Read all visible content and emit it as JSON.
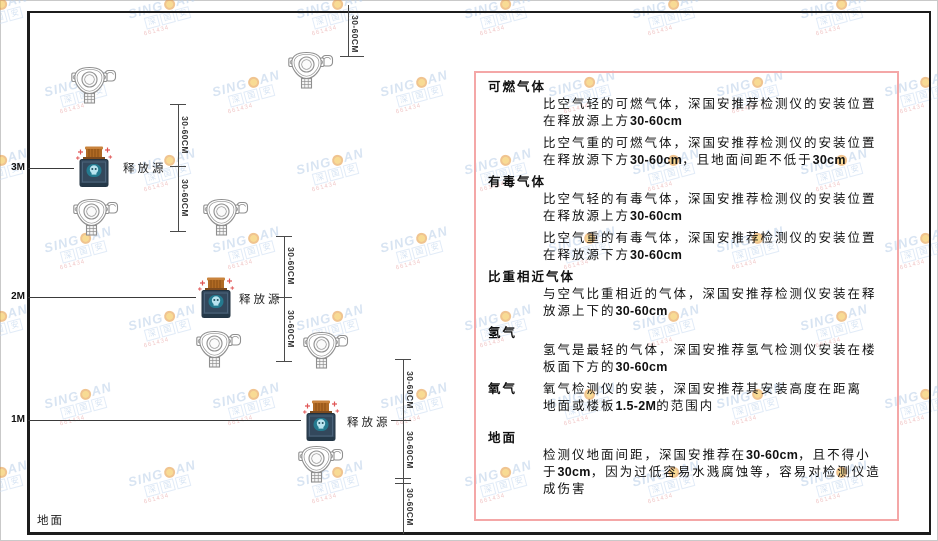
{
  "diagram": {
    "axis_labels": {
      "m3": "3M",
      "m2": "2M",
      "m1": "1M",
      "ground": "地面"
    },
    "release_source_label": "释放源",
    "dimension_label": "30-60CM"
  },
  "panel": {
    "border_color": "#f4a7a7",
    "sections": [
      {
        "heading": "可燃气体",
        "paragraphs": [
          "比空气轻的可燃气体，深国安推荐检测仪的安装位置在释放源上方30-60cm",
          "比空气重的可燃气体，深国安推荐检测仪的安装位置在释放源下方30-60cm，且地面间距不低于30cm"
        ]
      },
      {
        "heading": "有毒气体",
        "paragraphs": [
          "比空气轻的有毒气体，深国安推荐检测仪的安装位置在释放源上方30-60cm",
          "比空气重的有毒气体，深国安推荐检测仪的安装位置在释放源下方30-60cm"
        ]
      },
      {
        "heading": "比重相近气体",
        "paragraphs": [
          "与空气比重相近的气体，深国安推荐检测仪安装在释放源上下的30-60cm"
        ]
      },
      {
        "heading": "氢气",
        "paragraphs": [
          "氢气是最轻的气体，深国安推荐氢气检测仪安装在楼板面下方的30-60cm"
        ]
      },
      {
        "heading": "氧气",
        "inline": true,
        "paragraphs": [
          "氧气检测仪的安装，深国安推荐其安装高度在距离地面或楼板1.5-2M的范围内"
        ]
      },
      {
        "heading": "地面",
        "paragraphs": [
          "检测仪地面间距，深国安推荐在30-60cm，且不得小于30cm，因为过低容易水溅腐蚀等，容易对检测仪造成伤害"
        ]
      }
    ]
  },
  "watermark": {
    "brand_left": "SING",
    "brand_right": "AN",
    "sub_chars": [
      "深",
      "国",
      "安"
    ],
    "code": "661434"
  }
}
